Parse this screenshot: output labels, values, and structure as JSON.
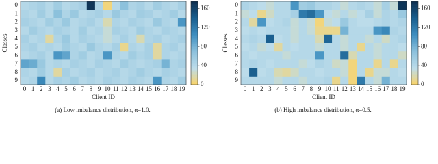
{
  "chart_data": [
    {
      "type": "heatmap",
      "caption": "(a)  Low imbalance distribution, α=1.0.",
      "xlabel": "Client ID",
      "ylabel": "Classes",
      "x": [
        0,
        1,
        2,
        3,
        4,
        5,
        6,
        7,
        8,
        9,
        10,
        11,
        12,
        13,
        14,
        15,
        16,
        17,
        18,
        19
      ],
      "y": [
        0,
        1,
        2,
        3,
        4,
        5,
        6,
        7,
        8,
        9
      ],
      "zlim": [
        0,
        175
      ],
      "zticks": [
        0,
        40,
        80,
        120,
        160
      ],
      "colorscale": [
        "#fbd468",
        "#bcdcea",
        "#8cc1dc",
        "#3f8fc0",
        "#1a5f8f",
        "#0d2f4f"
      ],
      "z": [
        [
          40,
          45,
          50,
          40,
          55,
          40,
          45,
          50,
          170,
          45,
          5,
          40,
          70,
          45,
          50,
          40,
          55,
          45,
          40,
          50
        ],
        [
          45,
          40,
          55,
          40,
          70,
          45,
          60,
          40,
          45,
          50,
          40,
          60,
          45,
          40,
          55,
          50,
          40,
          45,
          55,
          40
        ],
        [
          50,
          45,
          40,
          55,
          45,
          60,
          40,
          45,
          50,
          40,
          20,
          45,
          40,
          50,
          45,
          40,
          60,
          45,
          40,
          100
        ],
        [
          40,
          55,
          45,
          40,
          50,
          45,
          40,
          55,
          40,
          45,
          30,
          50,
          45,
          40,
          55,
          45,
          40,
          50,
          45,
          40
        ],
        [
          50,
          40,
          45,
          15,
          45,
          60,
          40,
          50,
          45,
          40,
          30,
          40,
          50,
          40,
          20,
          45,
          50,
          40,
          45,
          50
        ],
        [
          45,
          50,
          40,
          45,
          40,
          55,
          45,
          40,
          60,
          45,
          40,
          50,
          10,
          45,
          40,
          50,
          15,
          45,
          50,
          40
        ],
        [
          40,
          45,
          50,
          40,
          100,
          90,
          45,
          55,
          40,
          45,
          100,
          45,
          40,
          55,
          45,
          50,
          15,
          45,
          40,
          45
        ],
        [
          90,
          85,
          60,
          40,
          45,
          40,
          50,
          45,
          40,
          50,
          45,
          40,
          55,
          45,
          40,
          45,
          50,
          80,
          45,
          50
        ],
        [
          45,
          40,
          55,
          40,
          15,
          50,
          40,
          45,
          50,
          40,
          45,
          50,
          40,
          45,
          55,
          45,
          40,
          50,
          45,
          40
        ],
        [
          40,
          45,
          110,
          40,
          50,
          45,
          55,
          40,
          45,
          40,
          50,
          45,
          40,
          50,
          45,
          40,
          100,
          45,
          40,
          55
        ]
      ]
    },
    {
      "type": "heatmap",
      "caption": "(b)  High imbalance distribution, α=0.5.",
      "xlabel": "Client ID",
      "ylabel": "Classes",
      "x": [
        0,
        1,
        2,
        3,
        4,
        5,
        6,
        7,
        8,
        9,
        10,
        11,
        12,
        13,
        14,
        15,
        16,
        17,
        18,
        19
      ],
      "y": [
        0,
        1,
        2,
        3,
        4,
        5,
        6,
        7,
        8,
        9
      ],
      "zlim": [
        0,
        175
      ],
      "zticks": [
        0,
        40,
        80,
        120,
        160
      ],
      "colorscale": [
        "#fbd468",
        "#bcdcea",
        "#8cc1dc",
        "#3f8fc0",
        "#1a5f8f",
        "#0d2f4f"
      ],
      "z": [
        [
          45,
          40,
          35,
          30,
          40,
          40,
          100,
          55,
          60,
          45,
          45,
          40,
          30,
          40,
          45,
          40,
          30,
          50,
          30,
          170
        ],
        [
          30,
          35,
          10,
          25,
          40,
          40,
          50,
          120,
          130,
          100,
          35,
          30,
          40,
          30,
          35,
          50,
          30,
          45,
          40,
          60
        ],
        [
          40,
          15,
          100,
          35,
          40,
          45,
          30,
          40,
          30,
          5,
          30,
          35,
          60,
          40,
          35,
          35,
          40,
          45,
          40,
          45
        ],
        [
          35,
          40,
          35,
          40,
          40,
          40,
          30,
          40,
          30,
          10,
          10,
          10,
          80,
          40,
          40,
          40,
          100,
          110,
          45,
          40
        ],
        [
          40,
          45,
          40,
          140,
          35,
          40,
          30,
          40,
          40,
          20,
          135,
          40,
          30,
          40,
          40,
          30,
          40,
          25,
          40,
          45
        ],
        [
          35,
          40,
          30,
          35,
          15,
          40,
          35,
          40,
          40,
          30,
          40,
          40,
          30,
          40,
          10,
          40,
          30,
          40,
          40,
          35
        ],
        [
          40,
          35,
          40,
          40,
          40,
          30,
          40,
          40,
          40,
          100,
          40,
          40,
          130,
          20,
          40,
          40,
          30,
          40,
          40,
          25
        ],
        [
          40,
          45,
          40,
          35,
          40,
          40,
          40,
          30,
          35,
          45,
          40,
          25,
          30,
          5,
          40,
          40,
          10,
          40,
          10,
          40
        ],
        [
          35,
          140,
          35,
          40,
          20,
          15,
          25,
          40,
          40,
          35,
          40,
          40,
          30,
          5,
          40,
          10,
          30,
          30,
          40,
          35
        ],
        [
          40,
          40,
          40,
          40,
          30,
          40,
          40,
          30,
          40,
          40,
          45,
          10,
          40,
          5,
          120,
          40,
          30,
          80,
          40,
          40
        ]
      ]
    }
  ]
}
